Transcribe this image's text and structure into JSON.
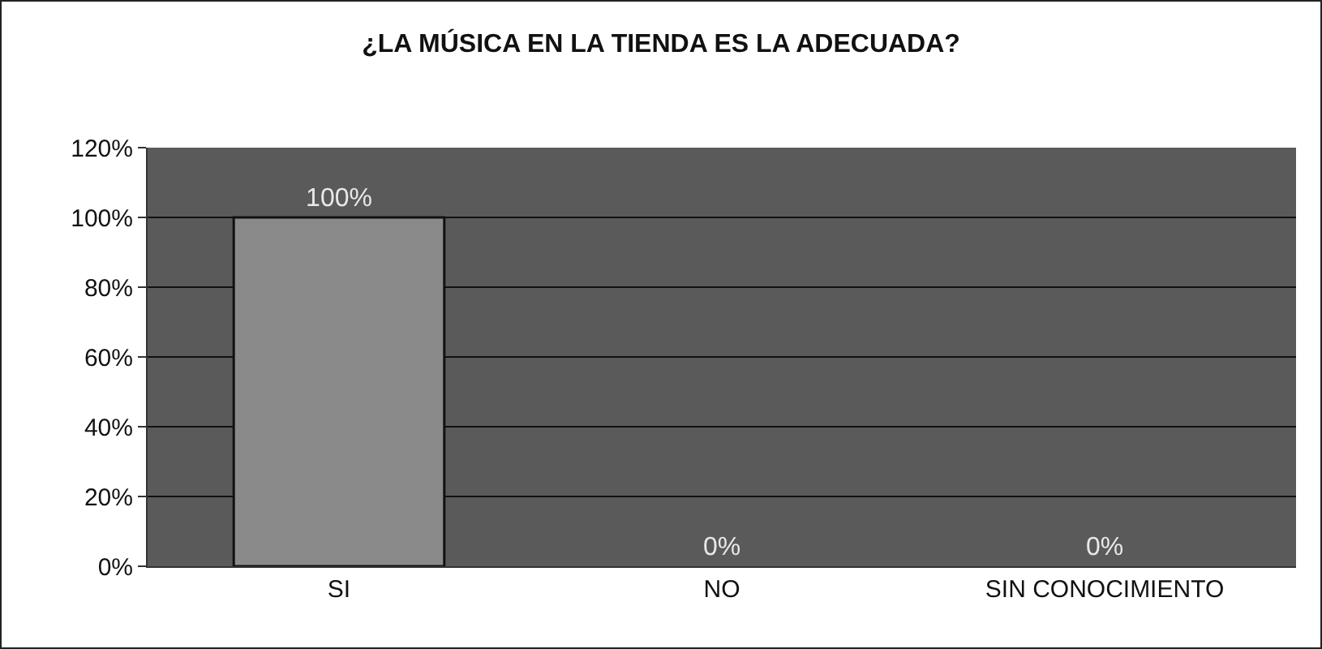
{
  "chart_data": {
    "type": "bar",
    "title": "¿LA MÚSICA EN LA TIENDA ES LA ADECUADA?",
    "categories": [
      "SI",
      "NO",
      "SIN CONOCIMIENTO"
    ],
    "values": [
      100,
      0,
      0
    ],
    "value_labels": [
      "100%",
      "0%",
      "0%"
    ],
    "color": "#8a8a8a",
    "ylim": [
      0,
      120
    ],
    "yticks": [
      {
        "value": 0,
        "label": "0%"
      },
      {
        "value": 20,
        "label": "20%"
      },
      {
        "value": 40,
        "label": "40%"
      },
      {
        "value": 60,
        "label": "60%"
      },
      {
        "value": 80,
        "label": "80%"
      },
      {
        "value": 100,
        "label": "100%"
      },
      {
        "value": 120,
        "label": "120%"
      }
    ],
    "grid": "y"
  }
}
